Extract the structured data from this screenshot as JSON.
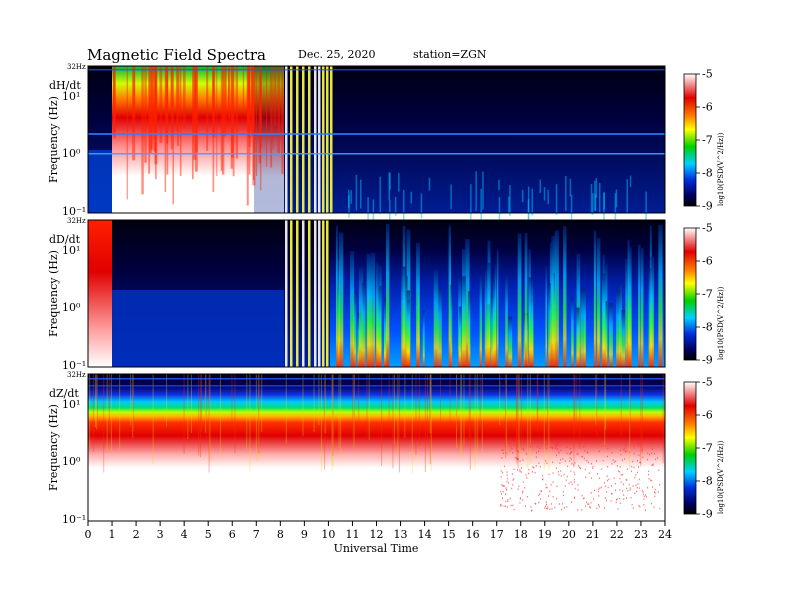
{
  "header": {
    "title": "Magnetic  Field  Spectra",
    "date": "Dec. 25, 2020",
    "station": "station=ZGN"
  },
  "chart_data": {
    "type": "heatmap",
    "xlabel": "Universal Time",
    "xlim": [
      0,
      24
    ],
    "x_ticks": [
      "0",
      "1",
      "2",
      "3",
      "4",
      "5",
      "6",
      "7",
      "8",
      "9",
      "10",
      "11",
      "12",
      "13",
      "14",
      "15",
      "16",
      "17",
      "18",
      "19",
      "20",
      "21",
      "22",
      "23",
      "24"
    ],
    "panels": [
      {
        "component": "dH/dt",
        "ylabel": "Frequency  (Hz)",
        "top_label": "32Hz",
        "colorbar_ticks": [
          "-5",
          "-6",
          "-7",
          "-8",
          "-9"
        ],
        "colorbar_label": "log10(PSD(V^2/Hz))"
      },
      {
        "component": "dD/dt",
        "ylabel": "Frequency  (Hz)",
        "top_label": "32Hz",
        "colorbar_ticks": [
          "-5",
          "-6",
          "-7",
          "-8",
          "-9"
        ],
        "colorbar_label": "log10(PSD(V^2/Hz))"
      },
      {
        "component": "dZ/dt",
        "ylabel": "Frequency  (Hz)",
        "top_label": "32Hz",
        "colorbar_ticks": [
          "-5",
          "-6",
          "-7",
          "-8",
          "-9"
        ],
        "colorbar_label": "log10(PSD(V^2/Hz))"
      }
    ],
    "y_ticks": [
      "10¹",
      "10⁰",
      "10⁻¹"
    ],
    "colormap": [
      "#ffffff",
      "#e00000",
      "#ff7000",
      "#ffff00",
      "#00d000",
      "#00c0ff",
      "#0030e0",
      "#000040",
      "#000000"
    ]
  }
}
